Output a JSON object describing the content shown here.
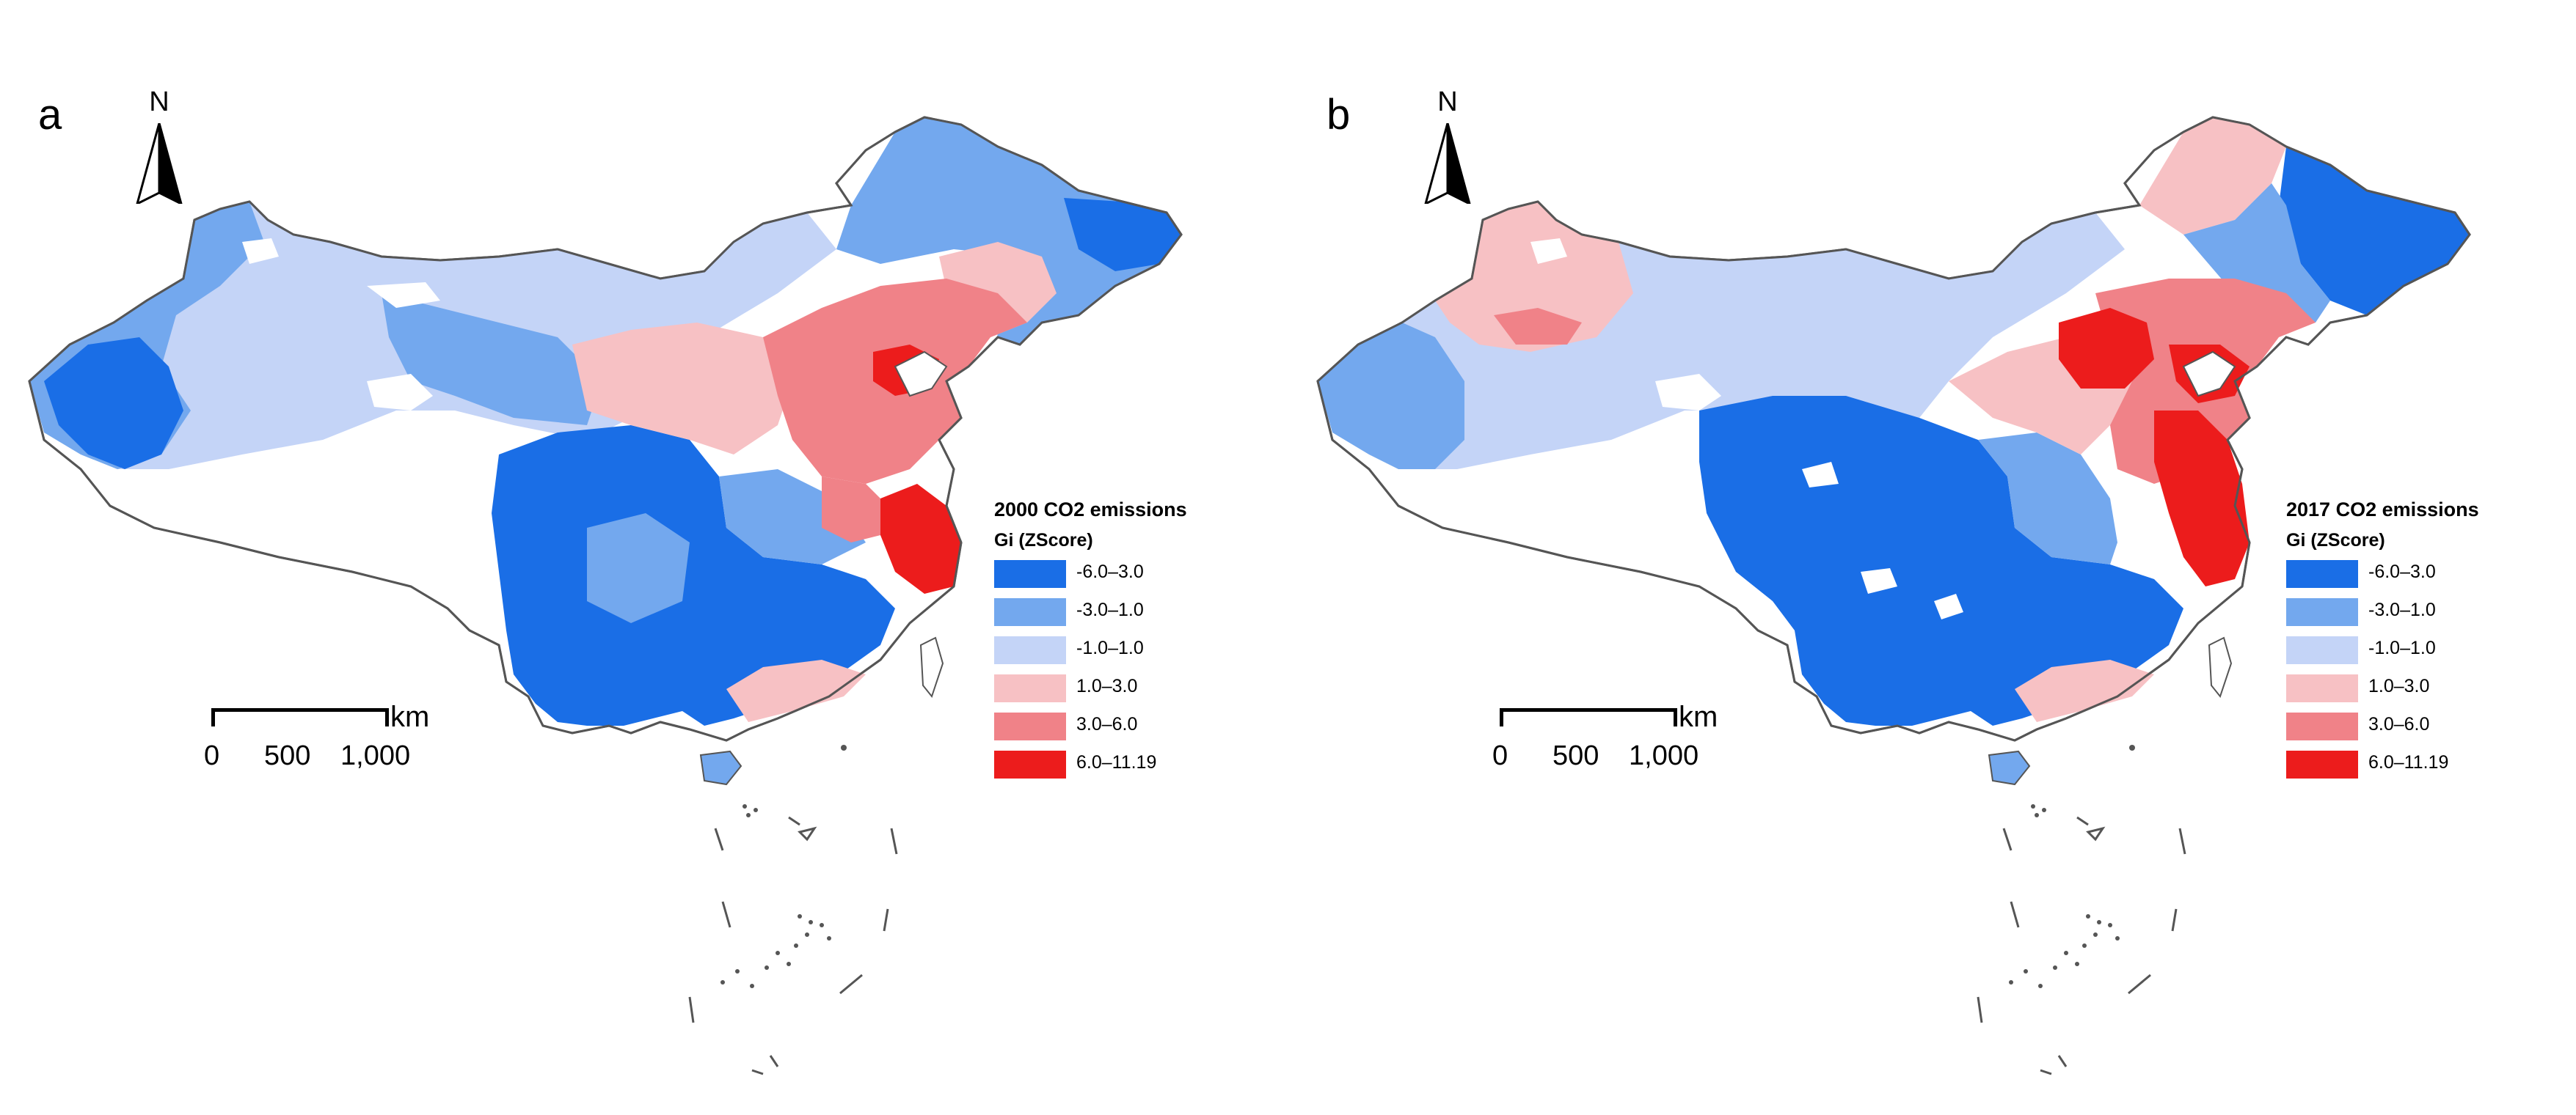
{
  "colors": {
    "class1": "#1a6ee6",
    "class2": "#73a8ee",
    "class3": "#c4d4f7",
    "class4": "#f7c1c4",
    "class5": "#f08288",
    "class6": "#ec1c1c",
    "outline": "#555555",
    "nodata": "#ffffff"
  },
  "panels": [
    {
      "letter": "a",
      "north_label": "N",
      "legend": {
        "title": "2000 CO2 emissions",
        "subtitle": "Gi (ZScore)",
        "items": [
          "-6.0–3.0",
          "-3.0–1.0",
          "-1.0–1.0",
          "1.0–3.0",
          "3.0–6.0",
          "6.0–11.19"
        ]
      },
      "scalebar": {
        "unit": "km",
        "ticks": [
          "0",
          "500",
          "1,000"
        ]
      }
    },
    {
      "letter": "b",
      "north_label": "N",
      "legend": {
        "title": "2017 CO2 emissions",
        "subtitle": "Gi (ZScore)",
        "items": [
          "-6.0–3.0",
          "-3.0–1.0",
          "-1.0–1.0",
          "1.0–3.0",
          "3.0–6.0",
          "6.0–11.19"
        ]
      },
      "scalebar": {
        "unit": "km",
        "ticks": [
          "0",
          "500",
          "1,000"
        ]
      }
    }
  ]
}
